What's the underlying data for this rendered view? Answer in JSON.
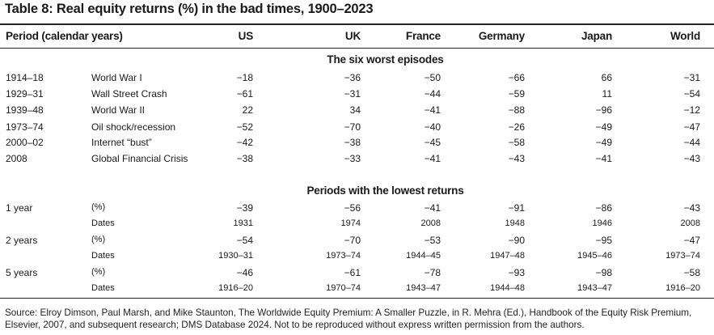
{
  "title": "Table 8: Real equity returns (%) in the bad times, 1900–2023",
  "columns": {
    "period": "Period (calendar years)",
    "countries": [
      "US",
      "UK",
      "France",
      "Germany",
      "Japan",
      "World"
    ]
  },
  "sections": {
    "worst_episodes": "The six worst episodes",
    "lowest_returns": "Periods with the lowest returns"
  },
  "episodes": [
    {
      "period": "1914–18",
      "event": "World War I",
      "values": [
        "−18",
        "−36",
        "−50",
        "−66",
        "66",
        "−31"
      ]
    },
    {
      "period": "1929–31",
      "event": "Wall Street Crash",
      "values": [
        "−61",
        "−31",
        "−44",
        "−59",
        "11",
        "−54"
      ]
    },
    {
      "period": "1939–48",
      "event": "World War II",
      "values": [
        "22",
        "34",
        "−41",
        "−88",
        "−96",
        "−12"
      ]
    },
    {
      "period": "1973–74",
      "event": "Oil shock/recession",
      "values": [
        "−52",
        "−70",
        "−40",
        "−26",
        "−49",
        "−47"
      ]
    },
    {
      "period": "2000–02",
      "event": "Internet “bust”",
      "values": [
        "−42",
        "−38",
        "−45",
        "−58",
        "−49",
        "−44"
      ]
    },
    {
      "period": "2008",
      "event": "Global Financial Crisis",
      "values": [
        "−38",
        "−33",
        "−41",
        "−43",
        "−41",
        "−43"
      ]
    }
  ],
  "lowest": [
    {
      "period": "1 year",
      "pct_label": "(%)",
      "values": [
        "−39",
        "−56",
        "−41",
        "−91",
        "−86",
        "−43"
      ],
      "dates_label": "Dates",
      "dates": [
        "1931",
        "1974",
        "2008",
        "1948",
        "1946",
        "2008"
      ]
    },
    {
      "period": "2 years",
      "pct_label": "(%)",
      "values": [
        "−54",
        "−70",
        "−53",
        "−90",
        "−95",
        "−47"
      ],
      "dates_label": "Dates",
      "dates": [
        "1930–31",
        "1973–74",
        "1944–45",
        "1947–48",
        "1945–46",
        "1973–74"
      ]
    },
    {
      "period": "5 years",
      "pct_label": "(%)",
      "values": [
        "−46",
        "−61",
        "−78",
        "−93",
        "−98",
        "−58"
      ],
      "dates_label": "Dates",
      "dates": [
        "1916–20",
        "1970–74",
        "1943–47",
        "1944–48",
        "1943–47",
        "1916–20"
      ]
    }
  ],
  "footer": "Source: Elroy Dimson, Paul Marsh, and Mike Staunton, The Worldwide Equity Premium: A Smaller Puzzle, in R. Mehra (Ed.), Handbook of the Equity Risk Premium, Elsevier, 2007, and subsequent research; DMS Database 2024. Not to be reproduced without express written permission from the authors."
}
